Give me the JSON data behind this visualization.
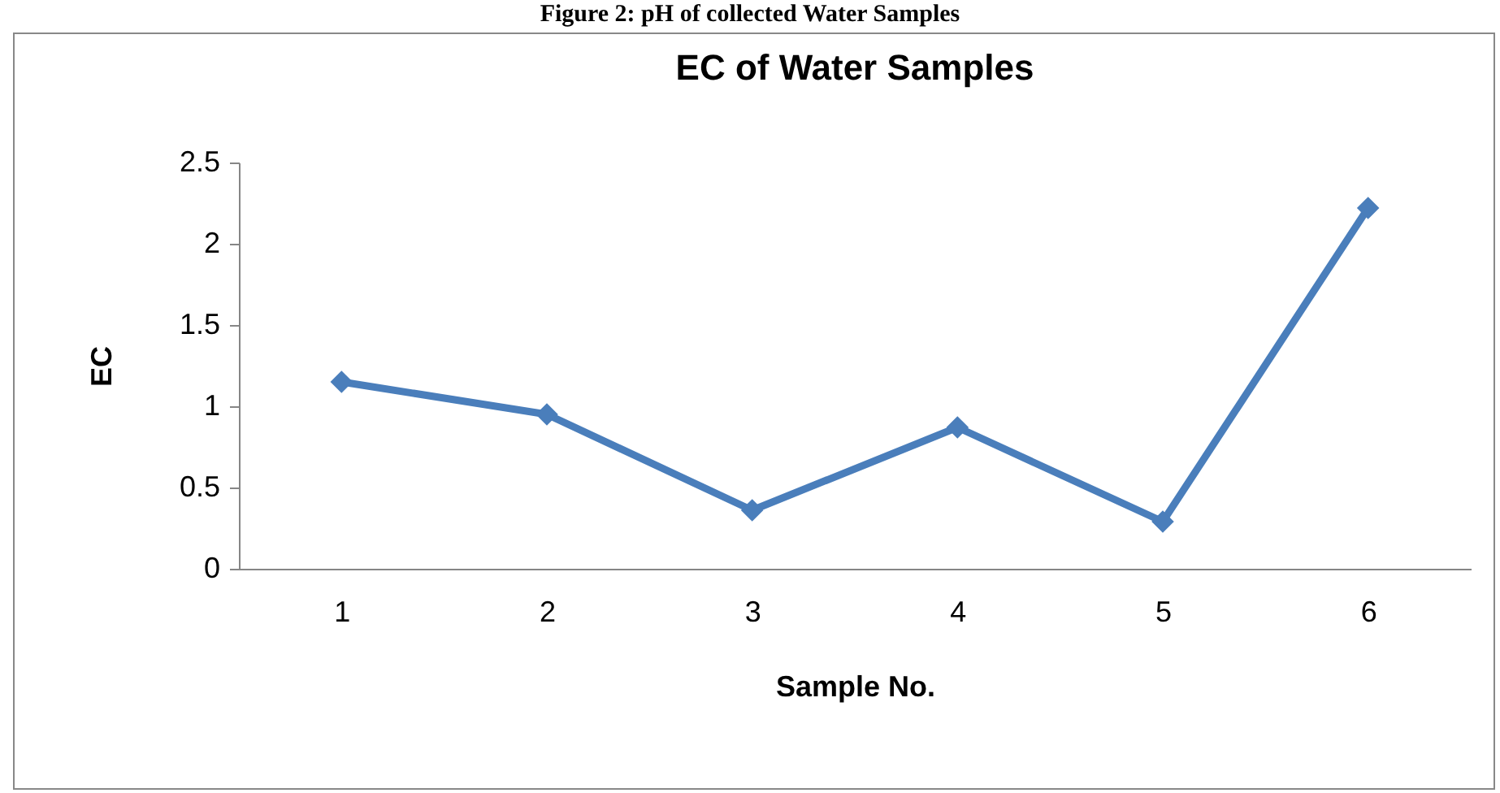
{
  "chart_data": {
    "type": "line",
    "title": "EC of Water Samples",
    "xlabel": "Sample No.",
    "ylabel": "EC",
    "annotations": [
      "Figure 2: pH of collected Water Samples"
    ],
    "categories": [
      "1",
      "2",
      "3",
      "4",
      "5",
      "6"
    ],
    "series": [
      {
        "color": "#4a7ebb",
        "values": [
          1.15,
          0.95,
          0.36,
          0.87,
          0.29,
          2.22
        ]
      }
    ],
    "ylim": [
      0,
      2.5
    ],
    "yticks": [
      0,
      0.5,
      1,
      1.5,
      2,
      2.5
    ],
    "grid": false,
    "marker": "diamond",
    "line_style": "solid"
  }
}
